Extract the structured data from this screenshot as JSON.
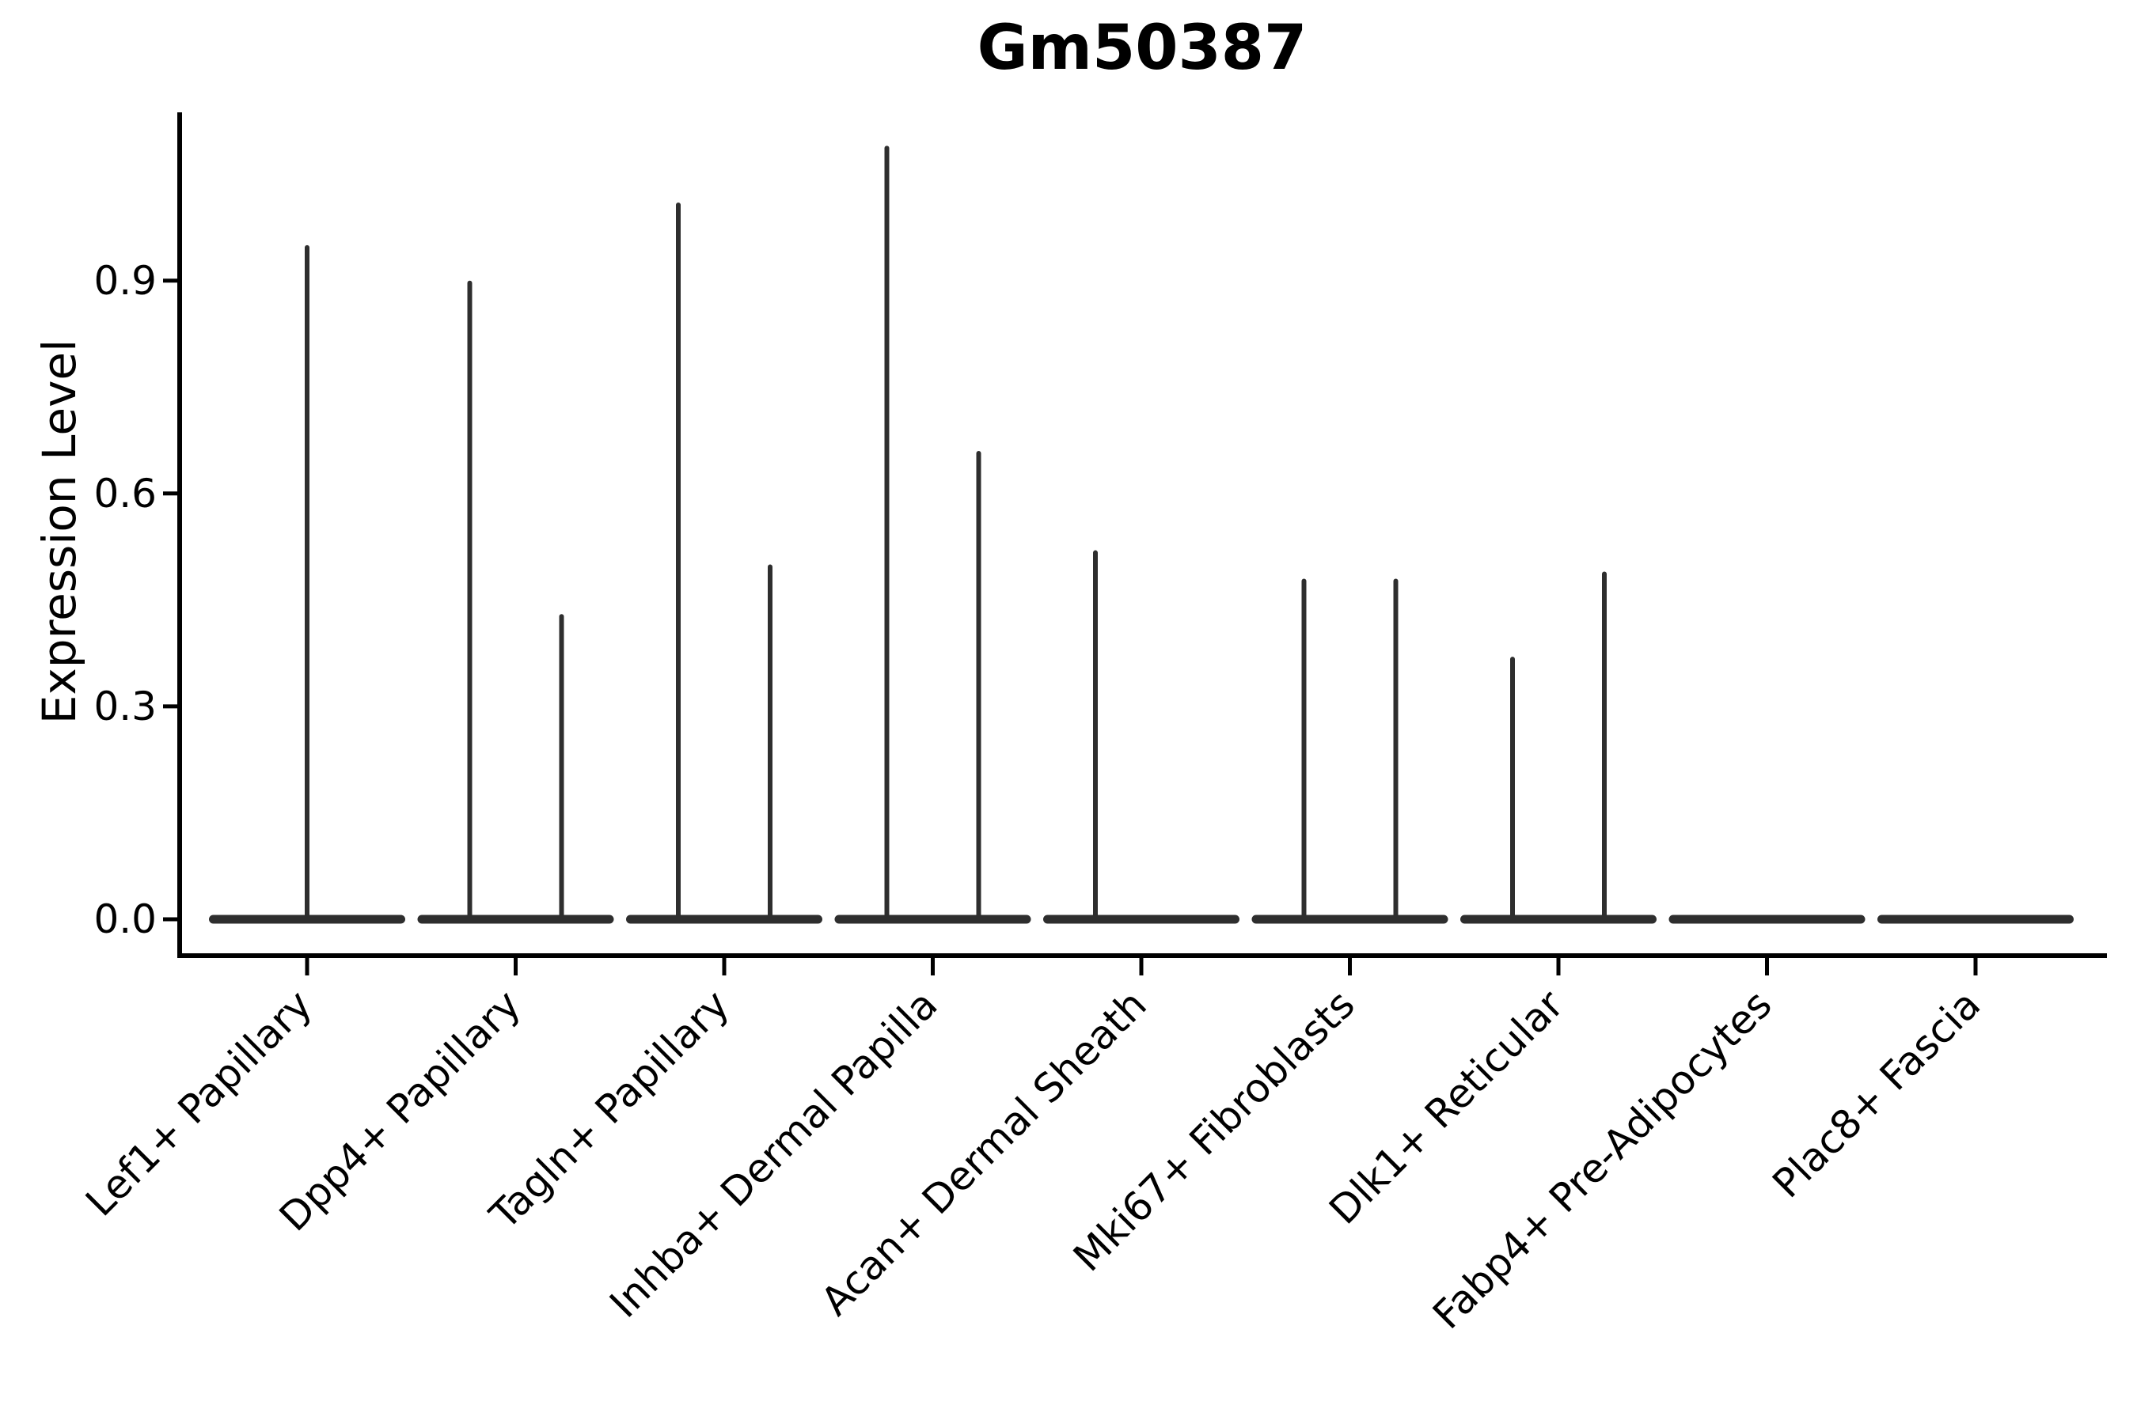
{
  "chart_data": {
    "type": "violin",
    "title": "Gm50387",
    "xlabel": "",
    "ylabel": "Expression Level",
    "yticks": [
      0.0,
      0.3,
      0.6,
      0.9
    ],
    "ytick_labels": [
      "0.0",
      "0.3",
      "0.6",
      "0.9"
    ],
    "ylim": [
      -0.05,
      1.19
    ],
    "grid": false,
    "legend": "none",
    "categories": [
      "Lef1+ Papillary",
      "Dpp4+ Papillary",
      "Tagln+ Papillary",
      "Inhba+ Dermal Papilla",
      "Acan+ Dermal Sheath",
      "Mki67+ Fibroblasts",
      "Dlk1+ Reticular",
      "Fabp4+ Pre-Adipocytes",
      "Plac8+ Fascia"
    ],
    "violins": [
      {
        "category": "Lef1+ Papillary",
        "baseline_value": 0.0,
        "spikes": [
          {
            "position": "center",
            "max_expression": 0.95
          }
        ]
      },
      {
        "category": "Dpp4+ Papillary",
        "baseline_value": 0.0,
        "spikes": [
          {
            "position": "left",
            "max_expression": 0.9
          },
          {
            "position": "right",
            "max_expression": 0.43
          }
        ]
      },
      {
        "category": "Tagln+ Papillary",
        "baseline_value": 0.0,
        "spikes": [
          {
            "position": "left",
            "max_expression": 1.01
          },
          {
            "position": "right",
            "max_expression": 0.5
          }
        ]
      },
      {
        "category": "Inhba+ Dermal Papilla",
        "baseline_value": 0.0,
        "spikes": [
          {
            "position": "left",
            "max_expression": 1.09
          },
          {
            "position": "right",
            "max_expression": 0.66
          }
        ]
      },
      {
        "category": "Acan+ Dermal Sheath",
        "baseline_value": 0.0,
        "spikes": [
          {
            "position": "left",
            "max_expression": 0.52
          }
        ]
      },
      {
        "category": "Mki67+ Fibroblasts",
        "baseline_value": 0.0,
        "spikes": [
          {
            "position": "left",
            "max_expression": 0.48
          },
          {
            "position": "right",
            "max_expression": 0.48
          }
        ]
      },
      {
        "category": "Dlk1+ Reticular",
        "baseline_value": 0.0,
        "spikes": [
          {
            "position": "left",
            "max_expression": 0.37
          },
          {
            "position": "right",
            "max_expression": 0.49
          }
        ]
      },
      {
        "category": "Fabp4+ Pre-Adipocytes",
        "baseline_value": 0.0,
        "spikes": []
      },
      {
        "category": "Plac8+ Fascia",
        "baseline_value": 0.0,
        "spikes": []
      }
    ],
    "colors": {
      "violin": "#2e2e2e",
      "axis": "#000000",
      "text": "#000000",
      "background": "#ffffff"
    }
  }
}
